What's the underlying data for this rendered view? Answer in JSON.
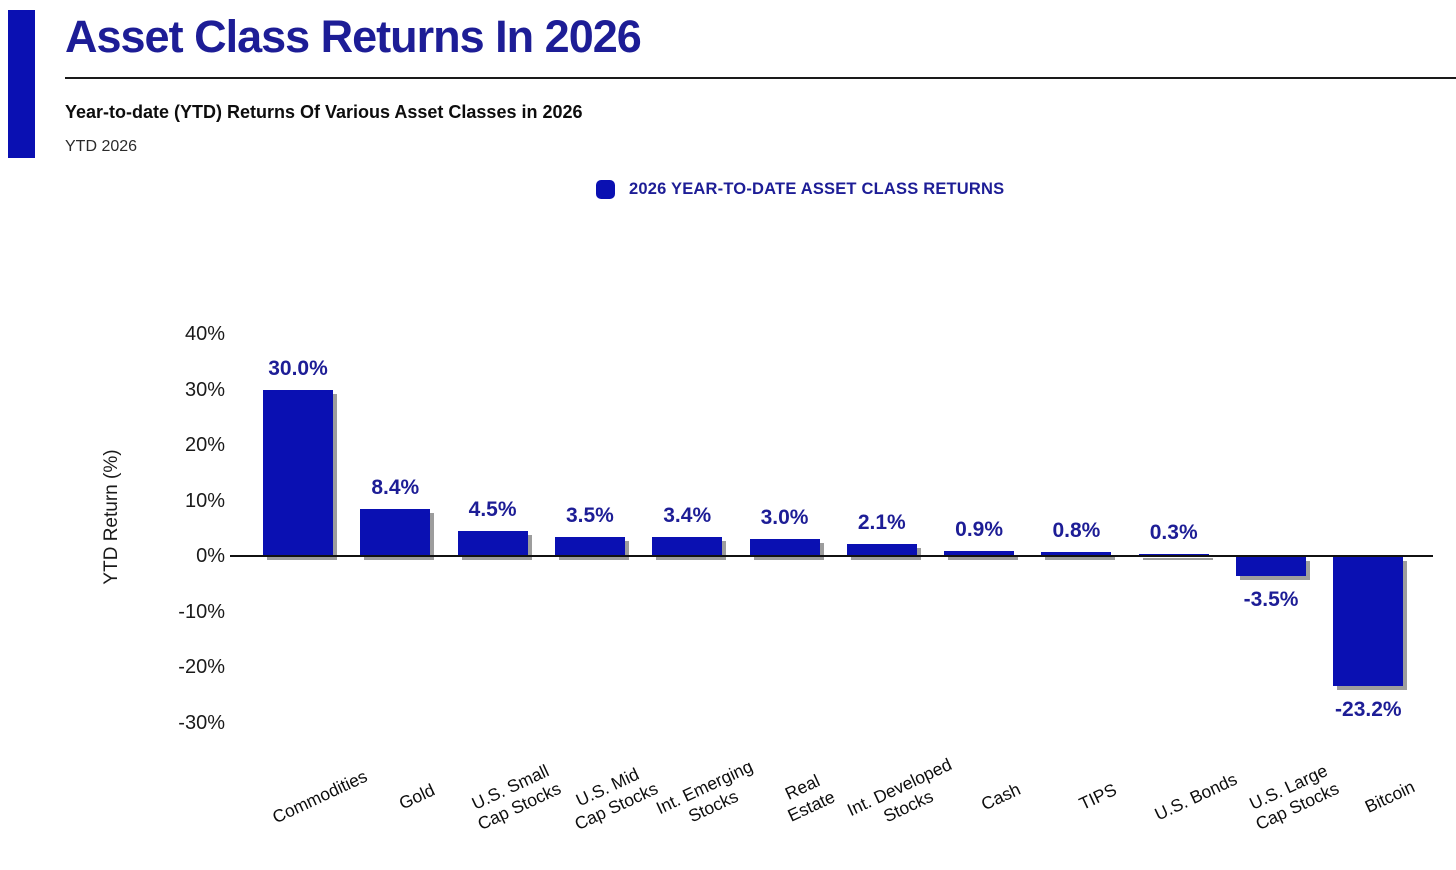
{
  "header": {
    "title": "Asset Class Returns In 2026",
    "subtitle": "Year-to-date (YTD) Returns Of Various Asset Classes in 2026",
    "period_label": "YTD 2026"
  },
  "legend": {
    "label": "2026 YEAR-TO-DATE ASSET CLASS RETURNS",
    "swatch_color": "#0a10b2"
  },
  "colors": {
    "bar": "#0a10b2",
    "navy_text": "#1d1d96",
    "accent": "#0a10b2",
    "axis": "#111111"
  },
  "chart_data": {
    "type": "bar",
    "title": "Asset Class Returns In 2026",
    "xlabel": "",
    "ylabel": "YTD Return (%)",
    "ylim": [
      -30,
      40
    ],
    "yticks": [
      40,
      30,
      20,
      10,
      0,
      -10,
      -20,
      -30
    ],
    "ytick_suffix": "%",
    "grid": false,
    "legend_position": "top-center",
    "categories": [
      "Commodities",
      "Gold",
      "U.S. Small Cap Stocks",
      "U.S. Mid Cap Stocks",
      "Int. Emerging Stocks",
      "Real Estate",
      "Int. Developed Stocks",
      "Cash",
      "TIPS",
      "U.S. Bonds",
      "U.S. Large Cap Stocks",
      "Bitcoin"
    ],
    "category_lines": [
      "Commodities",
      "Gold",
      "U.S. Small\nCap Stocks",
      "U.S. Mid\nCap Stocks",
      "Int. Emerging\nStocks",
      "Real\nEstate",
      "Int. Developed\nStocks",
      "Cash",
      "TIPS",
      "U.S. Bonds",
      "U.S. Large\nCap Stocks",
      "Bitcoin"
    ],
    "series": [
      {
        "name": "2026 YEAR-TO-DATE ASSET CLASS RETURNS",
        "values": [
          30.0,
          8.4,
          4.5,
          3.5,
          3.4,
          3.0,
          2.1,
          0.9,
          0.8,
          0.3,
          -3.5,
          -23.2
        ]
      }
    ],
    "value_labels": [
      "30.0%",
      "8.4%",
      "4.5%",
      "3.5%",
      "3.4%",
      "3.0%",
      "2.1%",
      "0.9%",
      "0.8%",
      "0.3%",
      "-3.5%",
      "-23.2%"
    ]
  }
}
